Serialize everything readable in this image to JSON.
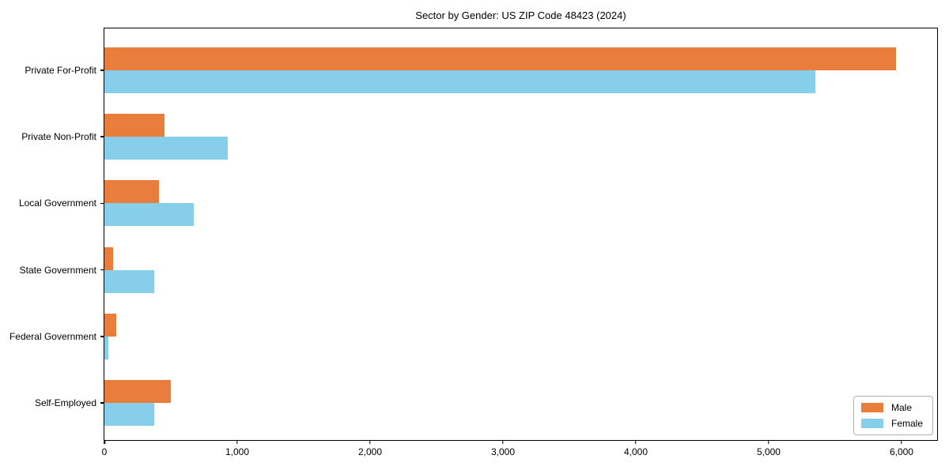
{
  "title": "Sector by Gender: US ZIP Code 48423 (2024)",
  "legend": {
    "position": "lower right",
    "entries": [
      {
        "label": "Male",
        "color": "#e87d3c"
      },
      {
        "label": "Female",
        "color": "#87ceeb"
      }
    ]
  },
  "chart_data": {
    "type": "bar",
    "orientation": "horizontal",
    "title": "Sector by Gender: US ZIP Code 48423 (2024)",
    "categories": [
      "Private For-Profit",
      "Private Non-Profit",
      "Local Government",
      "State Government",
      "Federal Government",
      "Self-Employed"
    ],
    "series": [
      {
        "name": "Male",
        "color": "#e87d3c",
        "values": [
          5960,
          450,
          410,
          65,
          90,
          500
        ]
      },
      {
        "name": "Female",
        "color": "#87ceeb",
        "values": [
          5350,
          930,
          670,
          375,
          30,
          375
        ]
      }
    ],
    "xlabel": "",
    "ylabel": "",
    "xlim": [
      0,
      6268
    ],
    "xticks": [
      0,
      1000,
      2000,
      3000,
      4000,
      5000,
      6000
    ],
    "xtick_labels": [
      "0",
      "1,000",
      "2,000",
      "3,000",
      "4,000",
      "5,000",
      "6,000"
    ],
    "grid": false,
    "legend_position": "lower right"
  }
}
